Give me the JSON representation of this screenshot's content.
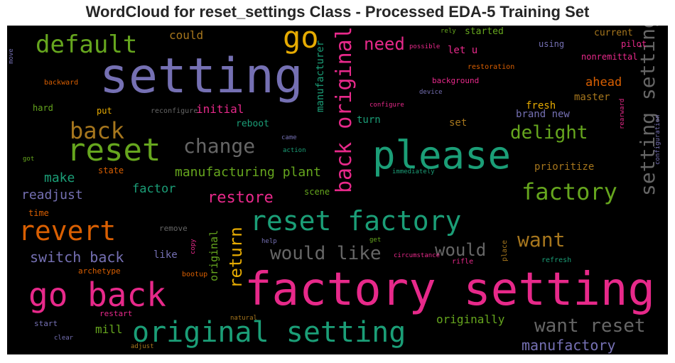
{
  "title": "WordCloud for reset_settings Class - Processed EDA-5 Training Set",
  "colors": {
    "background": "#000000",
    "palette": [
      "#1b9e77",
      "#d95f02",
      "#7570b3",
      "#e7298a",
      "#66a61e",
      "#e6ab02",
      "#a6761d",
      "#666666"
    ]
  },
  "words": [
    {
      "text": "factory setting",
      "size": 64,
      "color": "#e7298a"
    },
    {
      "text": "setting",
      "size": 68,
      "color": "#7570b3"
    },
    {
      "text": "please",
      "size": 54,
      "color": "#1b9e77"
    },
    {
      "text": "go back",
      "size": 46,
      "color": "#e7298a"
    },
    {
      "text": "reset",
      "size": 44,
      "color": "#66a61e"
    },
    {
      "text": "original setting",
      "size": 40,
      "color": "#1b9e77"
    },
    {
      "text": "reset factory",
      "size": 38,
      "color": "#1b9e77"
    },
    {
      "text": "revert",
      "size": 38,
      "color": "#d95f02"
    },
    {
      "text": "go",
      "size": 42,
      "color": "#e6ab02"
    },
    {
      "text": "default",
      "size": 34,
      "color": "#66a61e"
    },
    {
      "text": "back",
      "size": 32,
      "color": "#a6761d"
    },
    {
      "text": "factory",
      "size": 32,
      "color": "#66a61e"
    },
    {
      "text": "back original",
      "size": 30,
      "color": "#e7298a"
    },
    {
      "text": "setting setting",
      "size": 28,
      "color": "#666666"
    },
    {
      "text": "change",
      "size": 28,
      "color": "#666666"
    },
    {
      "text": "want",
      "size": 28,
      "color": "#a6761d"
    },
    {
      "text": "would like",
      "size": 26,
      "color": "#666666"
    },
    {
      "text": "delight",
      "size": 26,
      "color": "#66a61e"
    },
    {
      "text": "want reset",
      "size": 26,
      "color": "#666666"
    },
    {
      "text": "would",
      "size": 24,
      "color": "#666666"
    },
    {
      "text": "need",
      "size": 24,
      "color": "#e7298a"
    },
    {
      "text": "return",
      "size": 24,
      "color": "#e6ab02"
    },
    {
      "text": "restore",
      "size": 22,
      "color": "#e7298a"
    },
    {
      "text": "manufactory",
      "size": 20,
      "color": "#7570b3"
    },
    {
      "text": "switch back",
      "size": 20,
      "color": "#7570b3"
    },
    {
      "text": "manufacturing plant",
      "size": 18,
      "color": "#66a61e"
    },
    {
      "text": "readjust",
      "size": 18,
      "color": "#7570b3"
    },
    {
      "text": "make",
      "size": 18,
      "color": "#1b9e77"
    },
    {
      "text": "factor",
      "size": 17,
      "color": "#1b9e77"
    },
    {
      "text": "ahead",
      "size": 17,
      "color": "#d95f02"
    },
    {
      "text": "could",
      "size": 16,
      "color": "#a6761d"
    },
    {
      "text": "initial",
      "size": 16,
      "color": "#e7298a"
    },
    {
      "text": "originally",
      "size": 16,
      "color": "#66a61e"
    },
    {
      "text": "mill",
      "size": 16,
      "color": "#66a61e"
    },
    {
      "text": "original",
      "size": 15,
      "color": "#66a61e"
    },
    {
      "text": "let u",
      "size": 14,
      "color": "#e7298a"
    },
    {
      "text": "fresh",
      "size": 14,
      "color": "#e6ab02"
    },
    {
      "text": "brand new",
      "size": 14,
      "color": "#7570b3"
    },
    {
      "text": "manufacturer",
      "size": 14,
      "color": "#1b9e77"
    },
    {
      "text": "master",
      "size": 14,
      "color": "#a6761d"
    },
    {
      "text": "set",
      "size": 14,
      "color": "#a6761d"
    },
    {
      "text": "prioritize",
      "size": 14,
      "color": "#a6761d"
    },
    {
      "text": "like",
      "size": 14,
      "color": "#7570b3"
    },
    {
      "text": "turn",
      "size": 14,
      "color": "#1b9e77"
    },
    {
      "text": "current",
      "size": 13,
      "color": "#a6761d"
    },
    {
      "text": "started",
      "size": 13,
      "color": "#66a61e"
    },
    {
      "text": "reboot",
      "size": 13,
      "color": "#1b9e77"
    },
    {
      "text": "pilot",
      "size": 12,
      "color": "#e7298a"
    },
    {
      "text": "using",
      "size": 12,
      "color": "#7570b3"
    },
    {
      "text": "nonremittal",
      "size": 12,
      "color": "#e7298a"
    },
    {
      "text": "hard",
      "size": 12,
      "color": "#66a61e"
    },
    {
      "text": "put",
      "size": 12,
      "color": "#e6ab02"
    },
    {
      "text": "state",
      "size": 12,
      "color": "#d95f02"
    },
    {
      "text": "time",
      "size": 12,
      "color": "#d95f02"
    },
    {
      "text": "scene",
      "size": 12,
      "color": "#66a61e"
    },
    {
      "text": "remove",
      "size": 11,
      "color": "#666666"
    },
    {
      "text": "restart",
      "size": 11,
      "color": "#e7298a"
    },
    {
      "text": "start",
      "size": 11,
      "color": "#7570b3"
    },
    {
      "text": "archetype",
      "size": 11,
      "color": "#d95f02"
    },
    {
      "text": "background",
      "size": 11,
      "color": "#e7298a"
    },
    {
      "text": "refresh",
      "size": 10,
      "color": "#1b9e77"
    },
    {
      "text": "place",
      "size": 10,
      "color": "#a6761d"
    },
    {
      "text": "rifle",
      "size": 10,
      "color": "#e7298a"
    },
    {
      "text": "bootup",
      "size": 10,
      "color": "#d95f02"
    },
    {
      "text": "backward",
      "size": 10,
      "color": "#d95f02"
    },
    {
      "text": "reconfigure",
      "size": 10,
      "color": "#666666"
    },
    {
      "text": "restoration",
      "size": 10,
      "color": "#d95f02"
    },
    {
      "text": "device",
      "size": 9,
      "color": "#7570b3"
    },
    {
      "text": "configure",
      "size": 9,
      "color": "#e7298a"
    },
    {
      "text": "possible",
      "size": 9,
      "color": "#e7298a"
    },
    {
      "text": "rely",
      "size": 9,
      "color": "#66a61e"
    },
    {
      "text": "came",
      "size": 9,
      "color": "#7570b3"
    },
    {
      "text": "action",
      "size": 9,
      "color": "#1b9e77"
    },
    {
      "text": "immediately",
      "size": 9,
      "color": "#1b9e77"
    },
    {
      "text": "got",
      "size": 9,
      "color": "#66a61e"
    },
    {
      "text": "help",
      "size": 9,
      "color": "#7570b3"
    },
    {
      "text": "get",
      "size": 9,
      "color": "#66a61e"
    },
    {
      "text": "circumstance",
      "size": 9,
      "color": "#e7298a"
    },
    {
      "text": "natural",
      "size": 9,
      "color": "#a6761d"
    },
    {
      "text": "clear",
      "size": 9,
      "color": "#7570b3"
    },
    {
      "text": "adjust",
      "size": 9,
      "color": "#a6761d"
    },
    {
      "text": "copy",
      "size": 9,
      "color": "#e7298a"
    },
    {
      "text": "rearward",
      "size": 9,
      "color": "#e7298a"
    },
    {
      "text": "configuration",
      "size": 9,
      "color": "#7570b3"
    },
    {
      "text": "move",
      "size": 9,
      "color": "#7570b3"
    }
  ]
}
